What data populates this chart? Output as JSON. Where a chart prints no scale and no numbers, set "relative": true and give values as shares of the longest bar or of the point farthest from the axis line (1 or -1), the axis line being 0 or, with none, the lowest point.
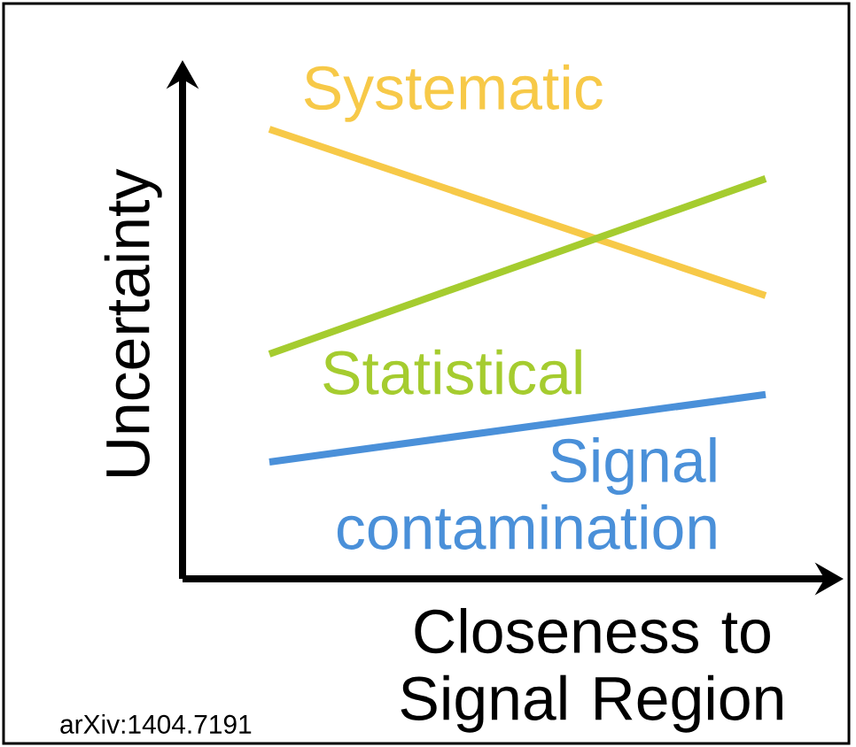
{
  "chart_data": {
    "type": "line",
    "relative": true,
    "xlabel": "Closeness to Signal Region",
    "ylabel": "Uncertainty",
    "categories": [
      null,
      null
    ],
    "series": [
      {
        "name": "Systematic",
        "color": "#f7c948",
        "values": [
          1,
          0.63
        ]
      },
      {
        "name": "Statistical",
        "color": "#a5cc2f",
        "values": [
          0.5,
          0.89
        ]
      },
      {
        "name": "Signal contamination",
        "color": "#4a90d9",
        "values": [
          0.26,
          0.41
        ]
      }
    ],
    "marker": "none",
    "line_style": "solid",
    "annotations": [
      "arXiv:1404.7191"
    ]
  }
}
